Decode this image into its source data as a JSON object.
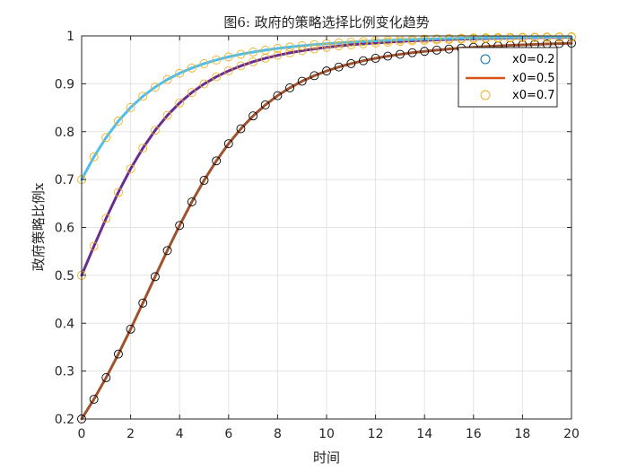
{
  "chart_data": {
    "type": "line",
    "title": "图6: 政府的策略选择比例变化趋势",
    "xlabel": "时间",
    "ylabel": "政府策略比例x",
    "xlim": [
      0,
      20
    ],
    "ylim": [
      0.2,
      1
    ],
    "x_ticks": [
      "0",
      "2",
      "4",
      "6",
      "8",
      "10",
      "12",
      "14",
      "16",
      "18",
      "20"
    ],
    "y_ticks": [
      "0.2",
      "0.3",
      "0.4",
      "0.5",
      "0.6",
      "0.7",
      "0.8",
      "0.9",
      "1"
    ],
    "grid": true,
    "legend_position": "top-right",
    "legend": [
      {
        "label": "x0=0.2",
        "marker": "circle",
        "color": "#0072BD"
      },
      {
        "label": "x0=0.5",
        "marker": "line",
        "color": "#D95319"
      },
      {
        "label": "x0=0.7",
        "marker": "circle",
        "color": "#EDB120"
      }
    ],
    "series": [
      {
        "x0": 0.2,
        "line_color": "#A0522D",
        "marker_color": "#000000",
        "x": [
          0,
          0.5,
          1,
          1.5,
          2,
          2.5,
          3,
          3.5,
          4,
          4.5,
          5,
          5.5,
          6,
          6.5,
          7,
          7.5,
          8,
          8.5,
          9,
          9.5,
          10,
          10.5,
          11,
          11.5,
          12,
          12.5,
          13,
          13.5,
          14,
          14.5,
          15,
          15.5,
          16,
          16.5,
          17,
          17.5,
          18,
          18.5,
          19,
          19.5,
          20
        ],
        "y": [
          0.2,
          0.2411,
          0.2863,
          0.3355,
          0.3877,
          0.4421,
          0.4972,
          0.5517,
          0.6041,
          0.6533,
          0.6984,
          0.739,
          0.7749,
          0.806,
          0.8329,
          0.8558,
          0.8751,
          0.8915,
          0.9053,
          0.9169,
          0.9267,
          0.9351,
          0.9421,
          0.9481,
          0.9532,
          0.9577,
          0.9615,
          0.9648,
          0.9677,
          0.9703,
          0.9725,
          0.9744,
          0.9762,
          0.9777,
          0.979,
          0.9803,
          0.9813,
          0.9823,
          0.9832,
          0.9839,
          0.9847
        ]
      },
      {
        "x0": 0.5,
        "line_color": "#6A2C91",
        "marker_color": "#EDB120",
        "x": [
          0,
          0.5,
          1,
          1.5,
          2,
          2.5,
          3,
          3.5,
          4,
          4.5,
          5,
          5.5,
          6,
          6.5,
          7,
          7.5,
          8,
          8.5,
          9,
          9.5,
          10,
          10.5,
          11,
          11.5,
          12,
          12.5,
          13,
          13.5,
          14,
          14.5,
          15,
          15.5,
          16,
          16.5,
          17,
          17.5,
          18,
          18.5,
          19,
          19.5,
          20
        ],
        "y": [
          0.5,
          0.5606,
          0.619,
          0.6734,
          0.7224,
          0.7655,
          0.8026,
          0.8339,
          0.86,
          0.8817,
          0.8997,
          0.9146,
          0.927,
          0.9373,
          0.946,
          0.9533,
          0.9594,
          0.9646,
          0.969,
          0.9728,
          0.9761,
          0.9789,
          0.9814,
          0.9835,
          0.9853,
          0.9869,
          0.9883,
          0.9896,
          0.9907,
          0.9916,
          0.9925,
          0.9932,
          0.9939,
          0.9945,
          0.9951,
          0.9955,
          0.996,
          0.9964,
          0.9967,
          0.997,
          0.9973
        ]
      },
      {
        "x0": 0.7,
        "line_color": "#4DBEEE",
        "marker_color": "#EDB120",
        "x": [
          0,
          0.5,
          1,
          1.5,
          2,
          2.5,
          3,
          3.5,
          4,
          4.5,
          5,
          5.5,
          6,
          6.5,
          7,
          7.5,
          8,
          8.5,
          9,
          9.5,
          10,
          10.5,
          11,
          11.5,
          12,
          12.5,
          13,
          13.5,
          14,
          14.5,
          15,
          15.5,
          16,
          16.5,
          17,
          17.5,
          18,
          18.5,
          19,
          19.5,
          20
        ],
        "y": [
          0.7,
          0.7472,
          0.7878,
          0.822,
          0.8504,
          0.8738,
          0.893,
          0.9089,
          0.922,
          0.9329,
          0.942,
          0.9497,
          0.9562,
          0.9617,
          0.9663,
          0.9703,
          0.9738,
          0.9768,
          0.9794,
          0.9817,
          0.9837,
          0.9855,
          0.987,
          0.9884,
          0.9896,
          0.9907,
          0.9917,
          0.9925,
          0.9933,
          0.994,
          0.9946,
          0.9951,
          0.9956,
          0.9961,
          0.9965,
          0.9968,
          0.9971,
          0.9974,
          0.9977,
          0.9979,
          0.9981
        ]
      }
    ]
  }
}
